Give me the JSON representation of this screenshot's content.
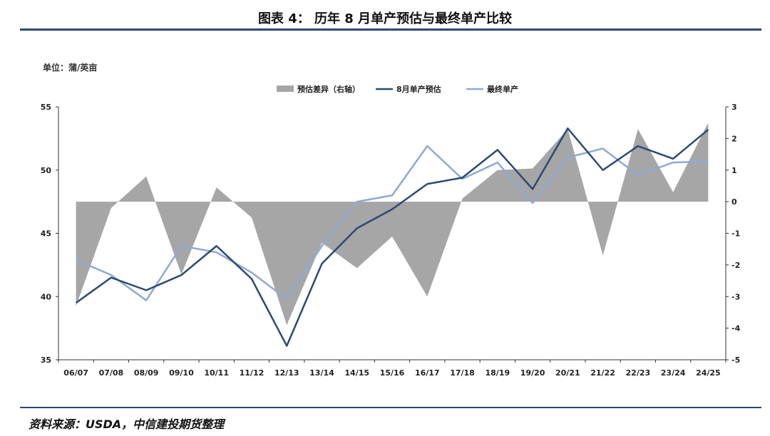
{
  "header": {
    "title": "图表 4：   历年 8 月单产预估与最终单产比较"
  },
  "unit_label": "单位：蒲/英亩",
  "source": "资料来源：USDA，中信建投期货整理",
  "colors": {
    "diff": "#a6a6a6",
    "estimate": "#2b4a74",
    "final": "#8eaad4",
    "rule": "#2b4a74"
  },
  "chart_data": {
    "type": "line",
    "categories": [
      "06/07",
      "07/08",
      "08/09",
      "09/10",
      "10/11",
      "11/12",
      "12/13",
      "13/14",
      "14/15",
      "15/16",
      "16/17",
      "17/18",
      "18/19",
      "19/20",
      "20/21",
      "21/22",
      "22/23",
      "23/24",
      "24/25"
    ],
    "series": [
      {
        "name": "预估差异（右轴）",
        "type": "area",
        "axis": "right",
        "values": [
          -3.3,
          -0.2,
          0.8,
          -2.3,
          0.45,
          -0.5,
          -3.9,
          -1.3,
          -2.1,
          -1.1,
          -3.0,
          0.1,
          1.0,
          1.05,
          2.3,
          -1.7,
          2.3,
          0.3,
          2.5
        ]
      },
      {
        "name": "8月单产预估",
        "type": "line",
        "axis": "left",
        "values": [
          39.5,
          41.5,
          40.5,
          41.7,
          44.0,
          41.4,
          36.1,
          42.6,
          45.4,
          46.9,
          48.9,
          49.4,
          51.6,
          48.5,
          53.3,
          50.0,
          51.9,
          50.9,
          53.2
        ]
      },
      {
        "name": "最终单产",
        "type": "line",
        "axis": "left",
        "values": [
          42.9,
          41.7,
          39.7,
          44.0,
          43.5,
          41.9,
          39.8,
          44.0,
          47.5,
          48.0,
          51.9,
          49.3,
          50.6,
          47.4,
          51.0,
          51.7,
          49.6,
          50.6,
          50.7
        ]
      }
    ],
    "legend": [
      "预估差异（右轴）",
      "8月单产预估",
      "最终单产"
    ],
    "legend_position": "top-center",
    "y_left": {
      "min": 35,
      "max": 55,
      "ticks": [
        35,
        40,
        45,
        50,
        55
      ]
    },
    "y_right": {
      "min": -5,
      "max": 3,
      "ticks": [
        -5,
        -4,
        -3,
        -2,
        -1,
        0,
        1,
        2,
        3
      ]
    },
    "grid": false
  }
}
